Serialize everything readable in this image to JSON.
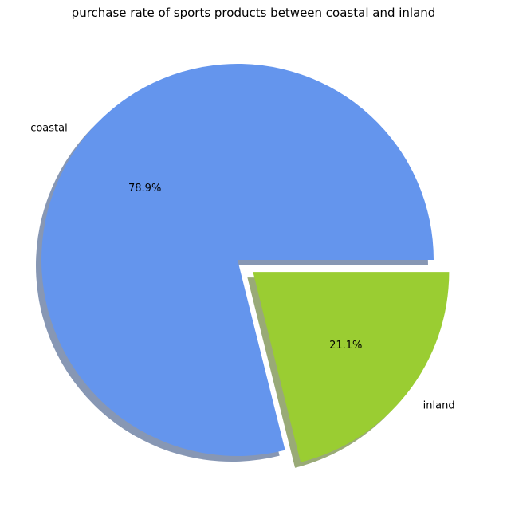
{
  "chart_data": {
    "type": "pie",
    "title": "purchase rate of sports products between coastal and inland",
    "categories": [
      "coastal",
      "inland"
    ],
    "values": [
      78.9,
      21.1
    ],
    "percent_labels": [
      "78.9%",
      "21.1%"
    ],
    "colors": [
      "#6495ED",
      "#9ACD32"
    ],
    "explode": [
      0,
      0.1
    ],
    "shadow": true,
    "start_angle": 0,
    "legend": "none"
  }
}
